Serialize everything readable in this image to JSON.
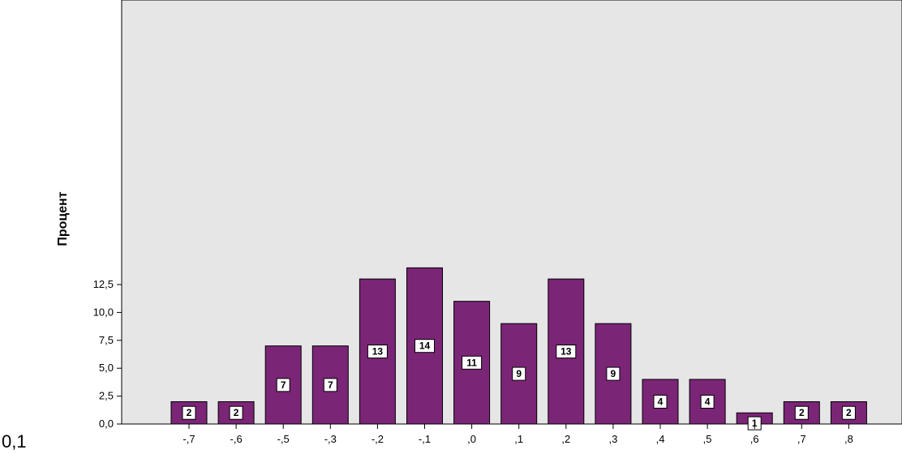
{
  "chart_data": {
    "type": "bar",
    "title": "",
    "xlabel": "",
    "ylabel": "Процент",
    "categories": [
      "-,7",
      "-,6",
      "-,5",
      "-,3",
      "-,2",
      "-,1",
      ",0",
      ",1",
      ",2",
      ",3",
      ",4",
      ",5",
      ",6",
      ",7",
      ",8"
    ],
    "values": [
      2,
      2,
      7,
      7,
      13,
      14,
      11,
      9,
      13,
      9,
      4,
      4,
      1,
      2,
      2
    ],
    "data_labels": [
      "2",
      "2",
      "7",
      "7",
      "13",
      "14",
      "11",
      "9",
      "13",
      "9",
      "4",
      "4",
      "1",
      "2",
      "2"
    ],
    "yticks": [
      "0,0",
      "2,5",
      "5,0",
      "7,5",
      "10,0",
      "12,5"
    ],
    "ytick_values": [
      0,
      2.5,
      5,
      7.5,
      10,
      12.5
    ],
    "ylim": [
      0,
      14.3
    ],
    "grid": false,
    "colors": {
      "bar": "#7b2577",
      "plot_bg": "#e6e6e6"
    }
  },
  "corner_text": "0,1"
}
